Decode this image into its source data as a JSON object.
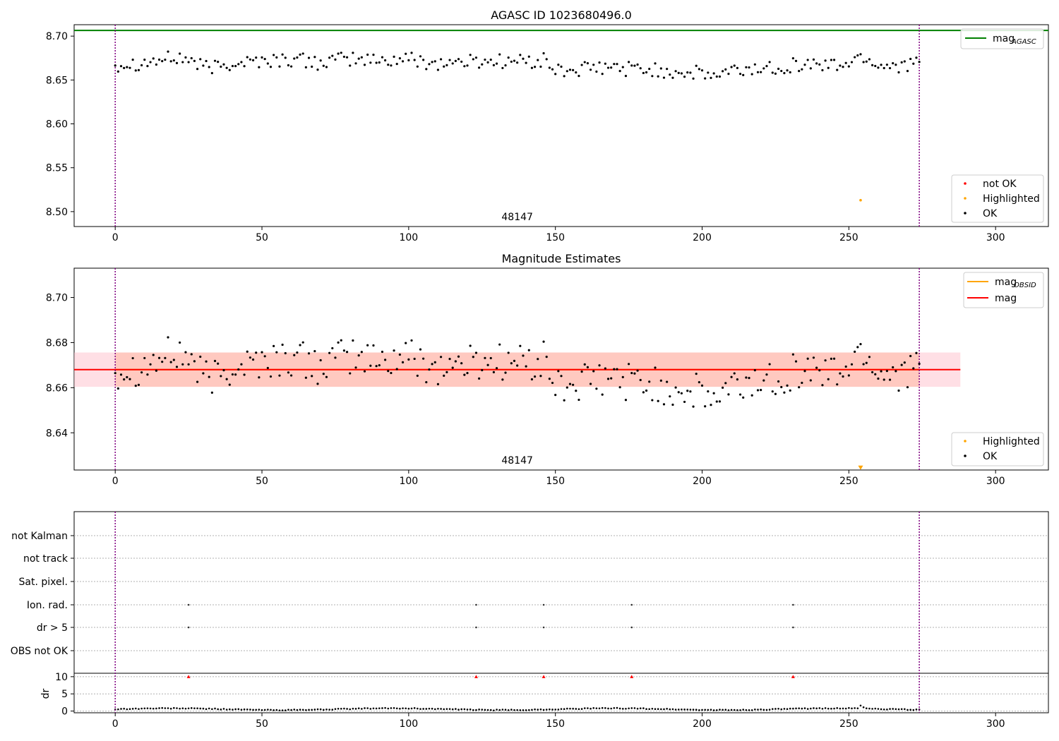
{
  "chart_data": [
    {
      "type": "scatter",
      "title": "AGASC ID 1023680496.0",
      "xlim": [
        -14,
        318
      ],
      "ylim": [
        8.483,
        8.713
      ],
      "xticks": [
        0,
        50,
        100,
        150,
        200,
        250,
        300
      ],
      "yticks": [
        8.5,
        8.55,
        8.6,
        8.65,
        8.7
      ],
      "grid": false,
      "annotation": "48147",
      "vlines": [
        0,
        274
      ],
      "mag_agasc": 8.7065,
      "legend_top": {
        "position": "top-right",
        "entries": [
          {
            "label": "mag",
            "sub": "AGASC",
            "color": "#008000"
          }
        ]
      },
      "legend_bottom": {
        "position": "bottom-right",
        "entries": [
          {
            "label": "not OK",
            "color": "#ff0000"
          },
          {
            "label": "Highlighted",
            "color": "#ffa500"
          },
          {
            "label": "OK",
            "color": "#000000"
          }
        ]
      },
      "highlighted_point": {
        "x": 254,
        "y": 8.513
      },
      "series": [
        {
          "name": "OK",
          "anchors": [
            [
              0,
              8.668
            ],
            [
              10,
              8.67
            ],
            [
              20,
              8.675
            ],
            [
              25,
              8.674
            ],
            [
              30,
              8.664
            ],
            [
              35,
              8.665
            ],
            [
              40,
              8.67
            ],
            [
              50,
              8.672
            ],
            [
              60,
              8.673
            ],
            [
              70,
              8.67
            ],
            [
              80,
              8.674
            ],
            [
              90,
              8.672
            ],
            [
              100,
              8.674
            ],
            [
              110,
              8.669
            ],
            [
              120,
              8.671
            ],
            [
              130,
              8.672
            ],
            [
              140,
              8.671
            ],
            [
              147,
              8.672
            ],
            [
              150,
              8.66
            ],
            [
              160,
              8.662
            ],
            [
              170,
              8.664
            ],
            [
              180,
              8.662
            ],
            [
              190,
              8.66
            ],
            [
              195,
              8.658
            ],
            [
              200,
              8.657
            ],
            [
              205,
              8.654
            ],
            [
              210,
              8.66
            ],
            [
              220,
              8.663
            ],
            [
              230,
              8.667
            ],
            [
              240,
              8.668
            ],
            [
              245,
              8.666
            ],
            [
              250,
              8.67
            ],
            [
              255,
              8.677
            ],
            [
              260,
              8.667
            ],
            [
              274,
              8.668
            ]
          ],
          "spread": 0.011,
          "n": 275
        }
      ]
    },
    {
      "type": "scatter",
      "title": "Magnitude Estimates",
      "xlim": [
        -14,
        318
      ],
      "ylim": [
        8.6235,
        8.713
      ],
      "xticks": [
        0,
        50,
        100,
        150,
        200,
        250,
        300
      ],
      "yticks": [
        8.64,
        8.66,
        8.68,
        8.7
      ],
      "grid": false,
      "annotation": "48147",
      "vlines": [
        0,
        274
      ],
      "mag": 8.668,
      "mag_band": [
        8.6604,
        8.6756
      ],
      "band_xrange": [
        -14,
        288
      ],
      "legend_top": {
        "position": "top-right",
        "entries": [
          {
            "label": "mag",
            "sub": "OBSID",
            "color": "#ffa500"
          },
          {
            "label": "mag",
            "sub": "",
            "color": "#ff0000"
          }
        ]
      },
      "legend_bottom": {
        "position": "bottom-right",
        "entries": [
          {
            "label": "Highlighted",
            "color": "#ffa500"
          },
          {
            "label": "OK",
            "color": "#000000"
          }
        ]
      },
      "highlighted_marker": {
        "x": 254,
        "y": 8.6245
      }
    },
    {
      "type": "scatter",
      "title": "",
      "xlim": [
        -14,
        318
      ],
      "xticks": [
        0,
        50,
        100,
        150,
        200,
        250,
        300
      ],
      "vlines": [
        0,
        274
      ],
      "flag_labels": [
        "not Kalman",
        "not track",
        "Sat. pixel.",
        "Ion. rad.",
        "dr > 5",
        "OBS not OK"
      ],
      "flag_points": [
        {
          "flag": "Ion. rad.",
          "x": [
            25,
            123,
            146,
            176,
            231
          ]
        },
        {
          "flag": "dr > 5",
          "x": [
            25,
            123,
            146,
            176,
            231
          ]
        }
      ],
      "dr": {
        "ylabel": "dr",
        "yticks": [
          0,
          5,
          10
        ],
        "ylim": [
          -0.5,
          11
        ],
        "typical": 0.55,
        "spike": {
          "x": 254,
          "y": 1.6
        },
        "over_limit_x": [
          25,
          123,
          146,
          176,
          231
        ],
        "over_limit_y": 10
      }
    }
  ]
}
